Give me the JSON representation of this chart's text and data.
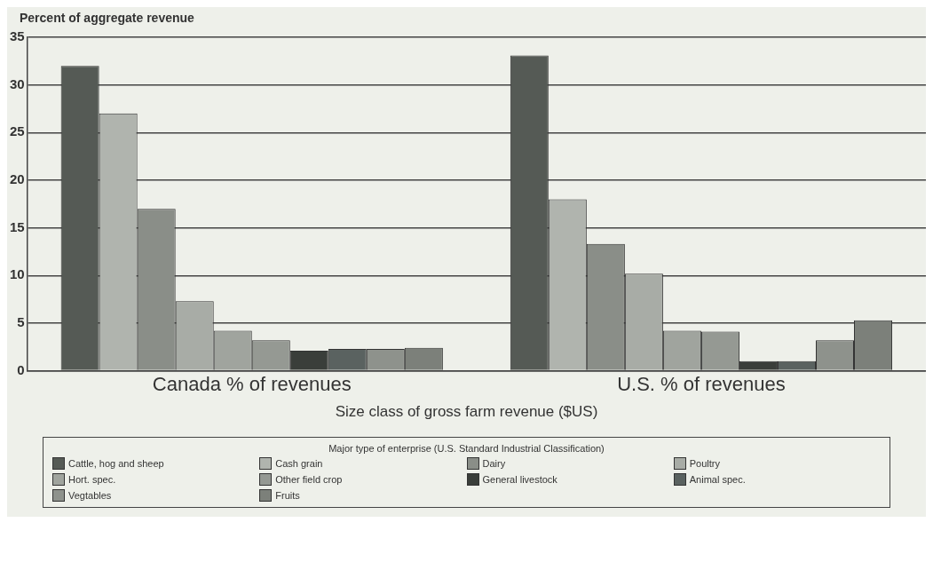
{
  "chart_data": {
    "type": "bar",
    "ylabel": "Percent of aggregate revenue",
    "xlabel": "Size class of gross farm revenue ($US)",
    "legend_title": "Major type of enterprise (U.S. Standard Industrial Classification)",
    "categories": [
      "Canada % of revenues",
      "U.S. % of revenues"
    ],
    "series": [
      {
        "name": "Cattle, hog and sheep",
        "color": "#555a55",
        "values": [
          32,
          33.1
        ]
      },
      {
        "name": "Cash grain",
        "color": "#b0b4ae",
        "values": [
          27,
          18
        ]
      },
      {
        "name": "Dairy",
        "color": "#8a8e88",
        "values": [
          17,
          13.3
        ]
      },
      {
        "name": "Poultry",
        "color": "#a8aca6",
        "values": [
          7.3,
          10.2
        ]
      },
      {
        "name": "Hort. spec.",
        "color": "#a0a49e",
        "values": [
          4.2,
          4.2
        ]
      },
      {
        "name": "Other field crop",
        "color": "#959993",
        "values": [
          3.2,
          4.1
        ]
      },
      {
        "name": "General livestock",
        "color": "#3a3e3a",
        "values": [
          2.1,
          1
        ]
      },
      {
        "name": "Animal spec.",
        "color": "#5a6260",
        "values": [
          2.3,
          1
        ]
      },
      {
        "name": "Vegtables",
        "color": "#8e928c",
        "values": [
          2.3,
          3.2
        ]
      },
      {
        "name": "Fruits",
        "color": "#7c807a",
        "values": [
          2.4,
          5.3
        ]
      }
    ],
    "ylim": [
      0,
      35
    ],
    "yticks": [
      0,
      5,
      10,
      15,
      20,
      25,
      30,
      35
    ],
    "grid": "y",
    "legend": "bottom"
  }
}
